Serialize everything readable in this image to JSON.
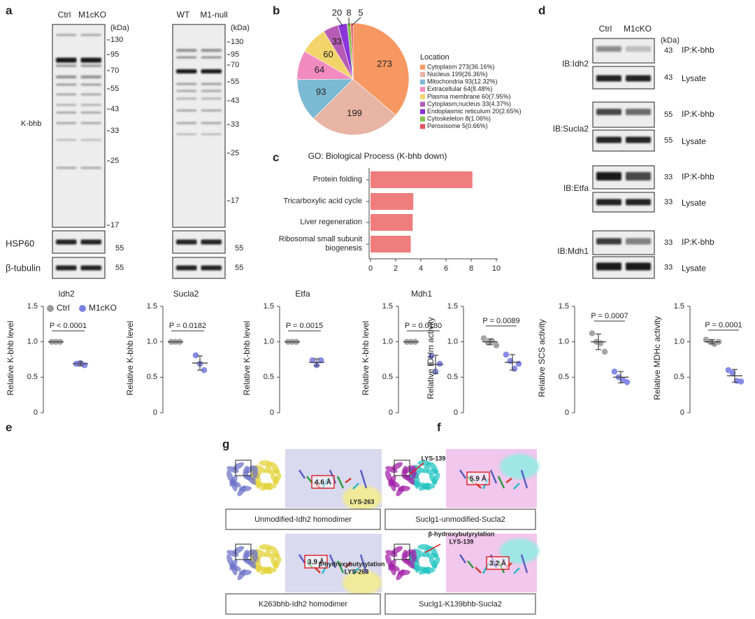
{
  "panel_labels": [
    "a",
    "b",
    "c",
    "d",
    "e",
    "f",
    "g"
  ],
  "panel_a": {
    "antibody": "K-bhb",
    "loading_controls": [
      "HSP60",
      "β-tubulin"
    ],
    "blots": [
      {
        "lanes": [
          "Ctrl",
          "M1cKO"
        ],
        "unit": "(kDa)",
        "markers": [
          130,
          95,
          70,
          55,
          43,
          33,
          25,
          17
        ],
        "loading_markers": [
          55,
          55
        ]
      },
      {
        "lanes": [
          "WT",
          "M1-null"
        ],
        "unit": "(kDa)",
        "markers": [
          130,
          95,
          70,
          55,
          43,
          33,
          25,
          17
        ],
        "loading_markers": [
          55,
          55
        ]
      }
    ]
  },
  "panel_d": {
    "lanes": [
      "Ctrl",
      "M1cKO"
    ],
    "unit": "(kDa)",
    "rows": [
      {
        "ib": "IB:Idh2",
        "ip_label": "IP:K-bhb",
        "ip_marker": 43,
        "lysate_label": "Lysate",
        "lysate_marker": 43
      },
      {
        "ib": "IB:Sucla2",
        "ip_label": "IP:K-bhb",
        "ip_marker": 55,
        "lysate_label": "Lysate",
        "lysate_marker": 55
      },
      {
        "ib": "IB:Etfa",
        "ip_label": "IP:K-bhb",
        "ip_marker": 33,
        "lysate_label": "Lysate",
        "lysate_marker": 33
      },
      {
        "ib": "IB:Mdh1",
        "ip_label": "IP:K-bhb",
        "ip_marker": 33,
        "lysate_label": "Lysate",
        "lysate_marker": 33
      }
    ]
  },
  "chart_data": [
    {
      "type": "pie",
      "legend_title": "Location",
      "categories": [
        "Cytoplasm 273(36.16%)",
        "Nucleus 199(26.36%)",
        "Mitochondria 93(12.32%)",
        "Extracellular 64(8.48%)",
        "Plasma membrane 60(7.95%)",
        "Cytoplasm,nucleus 33(4.37%)",
        "Endoplasmic reticulum 20(2.65%)",
        "Cytoskeleton 8(1.06%)",
        "Peroxisome 5(0.66%)"
      ],
      "values": [
        273,
        199,
        93,
        64,
        60,
        33,
        20,
        8,
        5
      ],
      "colors": [
        "#f79862",
        "#e8b4a3",
        "#7cb9d3",
        "#f28cc0",
        "#f2d46b",
        "#b55bb5",
        "#8b34d8",
        "#86c34d",
        "#e5525e"
      ]
    },
    {
      "type": "bar",
      "orientation": "horizontal",
      "title": "GO: Biological Process (K-bhb down)",
      "categories": [
        "Protein folding",
        "Tricarboxylic acid cycle",
        "Liver regeneration",
        "Ribosomal small subunit biogenesis"
      ],
      "values": [
        8.1,
        3.4,
        3.35,
        3.2
      ],
      "color": "#ef7d7d",
      "xlim": [
        0,
        10
      ],
      "xticks": [
        0,
        2,
        4,
        6,
        8,
        10
      ]
    },
    {
      "type": "dotplot",
      "title": "Idh2",
      "y_label": "Relative K-bhb level",
      "p_value": "P < 0.0001",
      "legend": "top",
      "ylim": [
        0,
        1.5
      ],
      "yticks": [
        0,
        0.5,
        {
          "value": 1,
          "label": "1.0"
        },
        1.5
      ],
      "series": [
        {
          "name": "Ctrl",
          "color": "#9a9a9a",
          "values": [
            1,
            1,
            1
          ],
          "mean": 1,
          "sd": 0
        },
        {
          "name": "M1cKO",
          "color": "#7b7fe6",
          "values": [
            0.69,
            0.7,
            0.67
          ],
          "mean": 0.69,
          "sd": 0.03
        }
      ]
    },
    {
      "type": "dotplot",
      "title": "Sucla2",
      "y_label": "Relative K-bhb level",
      "p_value": "P = 0.0182",
      "ylim": [
        0,
        1.5
      ],
      "yticks": [
        0,
        0.5,
        {
          "value": 1,
          "label": "1.0"
        },
        1.5
      ],
      "series": [
        {
          "color": "#9a9a9a",
          "values": [
            1,
            1,
            1
          ],
          "mean": 1,
          "sd": 0
        },
        {
          "color": "#7b7fe6",
          "values": [
            0.81,
            0.69,
            0.6
          ],
          "mean": 0.7,
          "sd": 0.1
        }
      ]
    },
    {
      "type": "dotplot",
      "title": "Etfa",
      "y_label": "Relative K-bhb level",
      "p_value": "P = 0.0015",
      "ylim": [
        0,
        1.5
      ],
      "yticks": [
        0,
        0.5,
        {
          "value": 1,
          "label": "1.0"
        },
        1.5
      ],
      "series": [
        {
          "color": "#9a9a9a",
          "values": [
            1,
            1,
            1
          ],
          "mean": 1,
          "sd": 0
        },
        {
          "color": "#7b7fe6",
          "values": [
            0.74,
            0.67,
            0.74
          ],
          "mean": 0.71,
          "sd": 0.05
        }
      ]
    },
    {
      "type": "dotplot",
      "title": "Mdh1",
      "y_label": "Relative K-bhb level",
      "p_value": "P = 0.0180",
      "ylim": [
        0,
        1.5
      ],
      "yticks": [
        0,
        0.5,
        {
          "value": 1,
          "label": "1.0"
        },
        1.5
      ],
      "series": [
        {
          "color": "#9a9a9a",
          "values": [
            1,
            1,
            1
          ],
          "mean": 1,
          "sd": 0
        },
        {
          "color": "#7b7fe6",
          "values": [
            0.8,
            0.58,
            0.69
          ],
          "mean": 0.68,
          "sd": 0.13
        }
      ]
    },
    {
      "type": "dotplot",
      "y_label": "Relative IDHm activity",
      "p_value": "P = 0.0089",
      "ylim": [
        0,
        1.5
      ],
      "yticks": [
        0,
        0.5,
        {
          "value": 1,
          "label": "1.0"
        },
        1.5
      ],
      "series": [
        {
          "color": "#9a9a9a",
          "values": [
            1.05,
            0.99,
            1.01,
            0.95
          ],
          "mean": 1,
          "sd": 0.04
        },
        {
          "color": "#7b7fe6",
          "values": [
            0.82,
            0.73,
            0.62,
            0.69
          ],
          "mean": 0.71,
          "sd": 0.11
        }
      ]
    },
    {
      "type": "dotplot",
      "y_label": "Relative SCS activity",
      "p_value": "P = 0.0007",
      "ylim": [
        0,
        1.5
      ],
      "yticks": [
        0,
        0.5,
        {
          "value": 1,
          "label": "1.0"
        },
        1.5
      ],
      "series": [
        {
          "color": "#9a9a9a",
          "values": [
            1.12,
            1,
            0.98,
            0.86
          ],
          "mean": 1,
          "sd": 0.11
        },
        {
          "color": "#7b7fe6",
          "values": [
            0.58,
            0.5,
            0.46,
            0.43
          ],
          "mean": 0.5,
          "sd": 0.08
        }
      ]
    },
    {
      "type": "dotplot",
      "y_label": "Relative MDHc activity",
      "p_value": "P = 0.0001",
      "ylim": [
        0,
        1.5
      ],
      "yticks": [
        0,
        0.5,
        {
          "value": 1,
          "label": "1.0"
        },
        1.5
      ],
      "series": [
        {
          "color": "#9a9a9a",
          "values": [
            1.03,
            1,
            0.97,
            1
          ],
          "mean": 1,
          "sd": 0.03
        },
        {
          "color": "#7b7fe6",
          "values": [
            0.6,
            0.56,
            0.45,
            0.44
          ],
          "mean": 0.52,
          "sd": 0.09
        }
      ]
    }
  ],
  "panel_g": {
    "structures": [
      {
        "caption": "Unmodified-Idh2 homodimer",
        "distance": "4.6 Å",
        "residue": "LYS-263"
      },
      {
        "caption": "Suclg1-unmodified-Sucla2",
        "distance": "5.9 Å",
        "residue": "LYS-139"
      },
      {
        "caption": "K263bhb-Idh2 homodimer",
        "distance": "3.9 Å",
        "modification": "β-hydroxybutyrylation",
        "residue": "LYS-263"
      },
      {
        "caption": "Suclg1-K139bhb-Sucla2",
        "distance": "3.2 Å",
        "modification": "β-hydroxybutyrylation",
        "residue": "LYS-139"
      }
    ]
  }
}
